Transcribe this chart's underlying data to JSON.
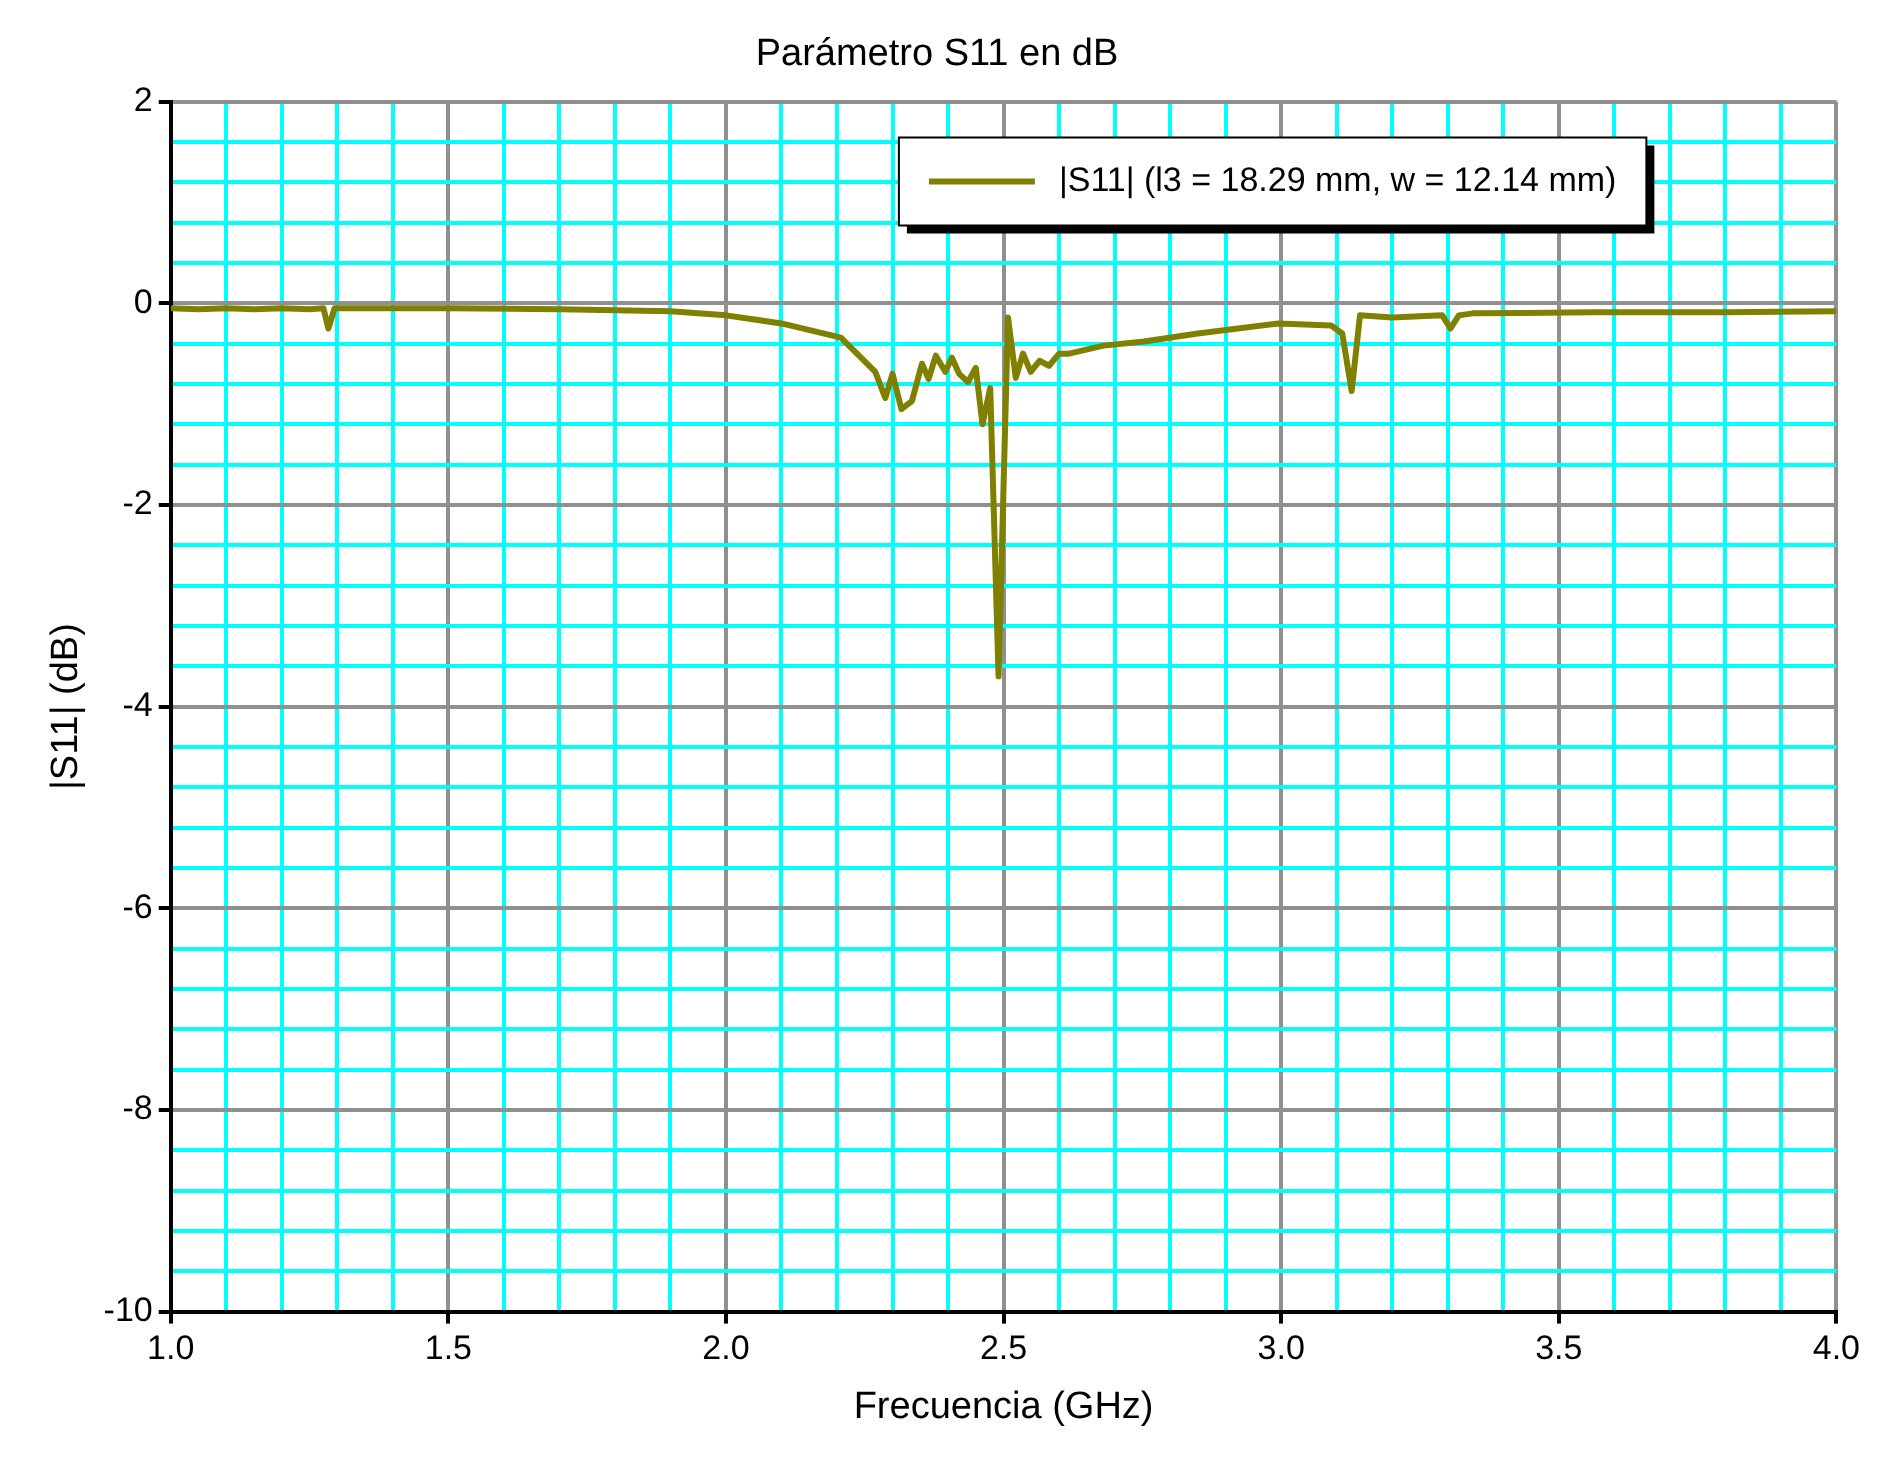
{
  "chart_data": {
    "type": "line",
    "title": "Parámetro S11 en dB",
    "xlabel": "Frecuencia (GHz)",
    "ylabel": "|S11| (dB)",
    "x": [
      1.0,
      1.05,
      1.1,
      1.15,
      1.2,
      1.25,
      1.275,
      1.284,
      1.295,
      1.35,
      1.5,
      1.7,
      1.8,
      1.9,
      2.0,
      2.1,
      2.207,
      2.269,
      2.287,
      2.3,
      2.316,
      2.335,
      2.353,
      2.365,
      2.378,
      2.395,
      2.407,
      2.42,
      2.436,
      2.45,
      2.462,
      2.476,
      2.491,
      2.508,
      2.522,
      2.535,
      2.549,
      2.565,
      2.582,
      2.6,
      2.618,
      2.68,
      2.753,
      2.85,
      2.995,
      3.09,
      3.11,
      3.127,
      3.142,
      3.2,
      3.29,
      3.305,
      3.32,
      3.345,
      3.56,
      3.8,
      4.0
    ],
    "series": [
      {
        "name": "|S11| (l3 = 18.29 mm, w = 12.14 mm)",
        "color": "#808000",
        "values": [
          -0.05,
          -0.06,
          -0.05,
          -0.06,
          -0.05,
          -0.06,
          -0.05,
          -0.25,
          -0.05,
          -0.05,
          -0.05,
          -0.06,
          -0.07,
          -0.08,
          -0.12,
          -0.2,
          -0.34,
          -0.68,
          -0.94,
          -0.7,
          -1.05,
          -0.97,
          -0.6,
          -0.75,
          -0.52,
          -0.68,
          -0.54,
          -0.7,
          -0.78,
          -0.64,
          -1.2,
          -0.84,
          -3.7,
          -0.14,
          -0.74,
          -0.5,
          -0.68,
          -0.57,
          -0.62,
          -0.5,
          -0.5,
          -0.42,
          -0.38,
          -0.3,
          -0.2,
          -0.22,
          -0.3,
          -0.87,
          -0.12,
          -0.14,
          -0.12,
          -0.25,
          -0.12,
          -0.1,
          -0.09,
          -0.09,
          -0.08
        ]
      }
    ],
    "xlim": [
      1.0,
      4.0
    ],
    "xticks": [
      {
        "value": 1.0,
        "label": "1.0"
      },
      {
        "value": 1.1,
        "label": null
      },
      {
        "value": 1.2,
        "label": null
      },
      {
        "value": 1.3,
        "label": null
      },
      {
        "value": 1.4,
        "label": null
      },
      {
        "value": 1.5,
        "label": "1.5"
      },
      {
        "value": 1.6,
        "label": null
      },
      {
        "value": 1.7,
        "label": null
      },
      {
        "value": 1.8,
        "label": null
      },
      {
        "value": 1.9,
        "label": null
      },
      {
        "value": 2.0,
        "label": "2.0"
      },
      {
        "value": 2.1,
        "label": null
      },
      {
        "value": 2.2,
        "label": null
      },
      {
        "value": 2.3,
        "label": null
      },
      {
        "value": 2.4,
        "label": null
      },
      {
        "value": 2.5,
        "label": "2.5"
      },
      {
        "value": 2.6,
        "label": null
      },
      {
        "value": 2.7,
        "label": null
      },
      {
        "value": 2.8,
        "label": null
      },
      {
        "value": 2.9,
        "label": null
      },
      {
        "value": 3.0,
        "label": "3.0"
      },
      {
        "value": 3.1,
        "label": null
      },
      {
        "value": 3.2,
        "label": null
      },
      {
        "value": 3.3,
        "label": null
      },
      {
        "value": 3.4,
        "label": null
      },
      {
        "value": 3.5,
        "label": "3.5"
      },
      {
        "value": 3.6,
        "label": null
      },
      {
        "value": 3.7,
        "label": null
      },
      {
        "value": 3.8,
        "label": null
      },
      {
        "value": 3.9,
        "label": null
      },
      {
        "value": 4.0,
        "label": "4.0"
      }
    ],
    "ylim": [
      -10,
      2
    ],
    "yticks": [
      -10,
      {
        "value": -9.6,
        "label": null
      },
      {
        "value": -9.2,
        "label": null
      },
      {
        "value": -8.8,
        "label": null
      },
      {
        "value": -8.4,
        "label": null
      },
      -8,
      {
        "value": -7.6,
        "label": null
      },
      {
        "value": -7.2,
        "label": null
      },
      {
        "value": -6.8,
        "label": null
      },
      {
        "value": -6.4,
        "label": null
      },
      -6,
      {
        "value": -5.6,
        "label": null
      },
      {
        "value": -5.2,
        "label": null
      },
      {
        "value": -4.8,
        "label": null
      },
      {
        "value": -4.4,
        "label": null
      },
      -4,
      {
        "value": -3.6,
        "label": null
      },
      {
        "value": -3.2,
        "label": null
      },
      {
        "value": -2.8,
        "label": null
      },
      {
        "value": -2.4,
        "label": null
      },
      -2,
      {
        "value": -1.6,
        "label": null
      },
      {
        "value": -1.2,
        "label": null
      },
      {
        "value": -0.8,
        "label": null
      },
      {
        "value": -0.4,
        "label": null
      },
      0,
      {
        "value": 0.4,
        "label": null
      },
      {
        "value": 0.8,
        "label": null
      },
      {
        "value": 1.2,
        "label": null
      },
      {
        "value": 1.6,
        "label": null
      },
      2
    ],
    "grid": true,
    "legend": "top right",
    "marker": "none",
    "line_style": "solid"
  }
}
